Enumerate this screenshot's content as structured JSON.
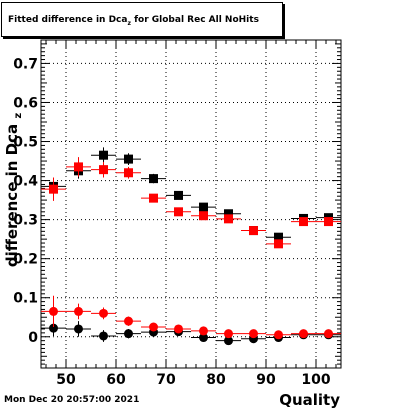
{
  "title": {
    "prefix": "Fitted difference in Dca",
    "subscript": "z",
    "suffix": " for Global Rec All NoHits"
  },
  "footer": "Mon Dec 20 20:57:00 2021",
  "chart_data": {
    "type": "scatter",
    "title": "Fitted difference in Dca_z for Global Rec All NoHits",
    "xlabel": "Quality",
    "ylabel": "difference in Dca",
    "ylabel_sub": "z",
    "xlim": [
      45,
      105
    ],
    "ylim": [
      -0.08,
      0.76
    ],
    "xticks": [
      50,
      60,
      70,
      80,
      90,
      100
    ],
    "yticks": [
      0,
      0.1,
      0.2,
      0.3,
      0.4,
      0.5,
      0.6,
      0.7
    ],
    "ytick_labels": [
      "0",
      "0.1",
      "0.2",
      "0.3",
      "0.4",
      "0.5",
      "0.6",
      "0.7"
    ],
    "grid": true,
    "x": [
      47.5,
      52.5,
      57.5,
      62.5,
      67.5,
      72.5,
      77.5,
      82.5,
      87.5,
      92.5,
      97.5,
      102.5
    ],
    "series": [
      {
        "color": "#000000",
        "marker": "square",
        "values": [
          0.385,
          0.425,
          0.465,
          0.455,
          0.405,
          0.362,
          0.332,
          0.315,
          0.272,
          0.255,
          0.303,
          0.305
        ],
        "errors": [
          0.01,
          0.02,
          0.02,
          0.015,
          0.012,
          0.01,
          0.008,
          0.008,
          0.006,
          0.006,
          0.006,
          0.006
        ]
      },
      {
        "color": "#ff0000",
        "marker": "square",
        "values": [
          0.378,
          0.435,
          0.428,
          0.42,
          0.355,
          0.32,
          0.31,
          0.302,
          0.272,
          0.238,
          0.295,
          0.295
        ],
        "errors": [
          0.03,
          0.025,
          0.02,
          0.015,
          0.01,
          0.008,
          0.008,
          0.008,
          0.006,
          0.006,
          0.006,
          0.006
        ]
      },
      {
        "color": "#000000",
        "marker": "circle",
        "values": [
          0.022,
          0.02,
          0.002,
          0.008,
          0.012,
          0.013,
          -0.002,
          -0.01,
          -0.005,
          -0.002,
          0.005,
          0.005
        ],
        "errors": [
          0.02,
          0.02,
          0.015,
          0.012,
          0.01,
          0.01,
          0.008,
          0.008,
          0.006,
          0.006,
          0.006,
          0.006
        ]
      },
      {
        "color": "#ff0000",
        "marker": "circle",
        "values": [
          0.065,
          0.065,
          0.06,
          0.04,
          0.025,
          0.02,
          0.015,
          0.008,
          0.008,
          0.005,
          0.008,
          0.008
        ],
        "errors": [
          0.04,
          0.02,
          0.015,
          0.012,
          0.01,
          0.008,
          0.006,
          0.006,
          0.005,
          0.005,
          0.005,
          0.005
        ]
      }
    ]
  }
}
